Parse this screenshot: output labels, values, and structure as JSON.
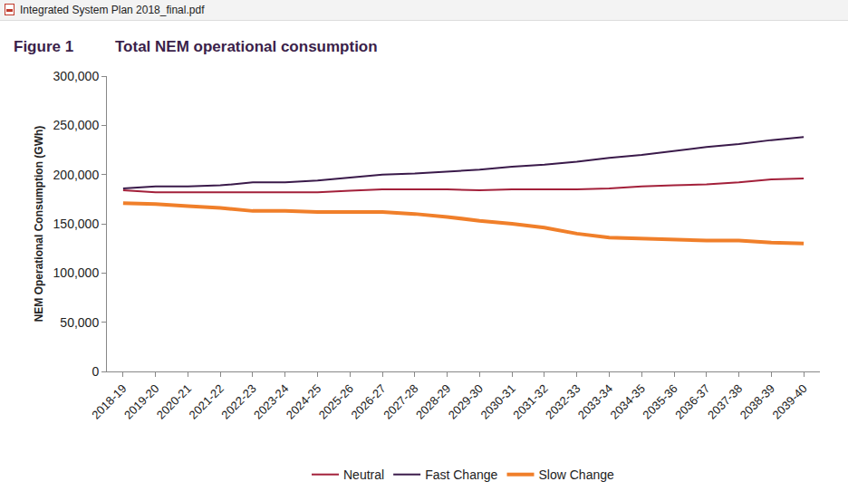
{
  "header": "Integrated System Plan 2018_final.pdf",
  "chart_data": {
    "type": "line",
    "figure_label": "Figure 1",
    "title": "Total NEM operational consumption",
    "y_label": "NEM Operational Consumption (GWh)",
    "categories": [
      "2018-19",
      "2019-20",
      "2020-21",
      "2021-22",
      "2022-23",
      "2023-24",
      "2024-25",
      "2025-26",
      "2026-27",
      "2027-28",
      "2028-29",
      "2029-30",
      "2030-31",
      "2031-32",
      "2032-33",
      "2033-34",
      "2034-35",
      "2035-36",
      "2036-37",
      "2037-38",
      "2038-39",
      "2039-40"
    ],
    "series": [
      {
        "name": "Neutral",
        "color": "#a3203a",
        "line_style": "solid",
        "values": [
          184000,
          182000,
          182000,
          182000,
          182000,
          182000,
          182000,
          183500,
          185000,
          185000,
          185000,
          184000,
          185000,
          185000,
          185000,
          186000,
          188000,
          189000,
          190000,
          192000,
          195000,
          196000
        ]
      },
      {
        "name": "Fast Change",
        "color": "#3a1a4a",
        "line_style": "solid",
        "values": [
          186000,
          188000,
          188000,
          189000,
          192000,
          192000,
          194000,
          197000,
          200000,
          201000,
          203000,
          205000,
          208000,
          210000,
          213000,
          217000,
          220000,
          224000,
          228000,
          231000,
          235000,
          238000
        ]
      },
      {
        "name": "Slow Change",
        "color": "#f07f2a",
        "line_style": "solid",
        "values": [
          171000,
          170000,
          168000,
          166000,
          163000,
          163000,
          162000,
          162000,
          162000,
          160000,
          157000,
          153000,
          150000,
          146000,
          140000,
          136000,
          135000,
          134000,
          133000,
          133000,
          131000,
          130000
        ]
      }
    ],
    "ylim": [
      0,
      300000
    ],
    "yticks": [
      0,
      {
        "value": 50000,
        "label": "50,000"
      },
      {
        "value": 100000,
        "label": "100,000"
      },
      {
        "value": 150000,
        "label": "150,000"
      },
      {
        "value": 200000,
        "label": "200,000"
      },
      {
        "value": 250000,
        "label": "250,000"
      },
      {
        "value": 300000,
        "label": "300,000"
      }
    ],
    "grid": false,
    "legend": "bottom"
  }
}
